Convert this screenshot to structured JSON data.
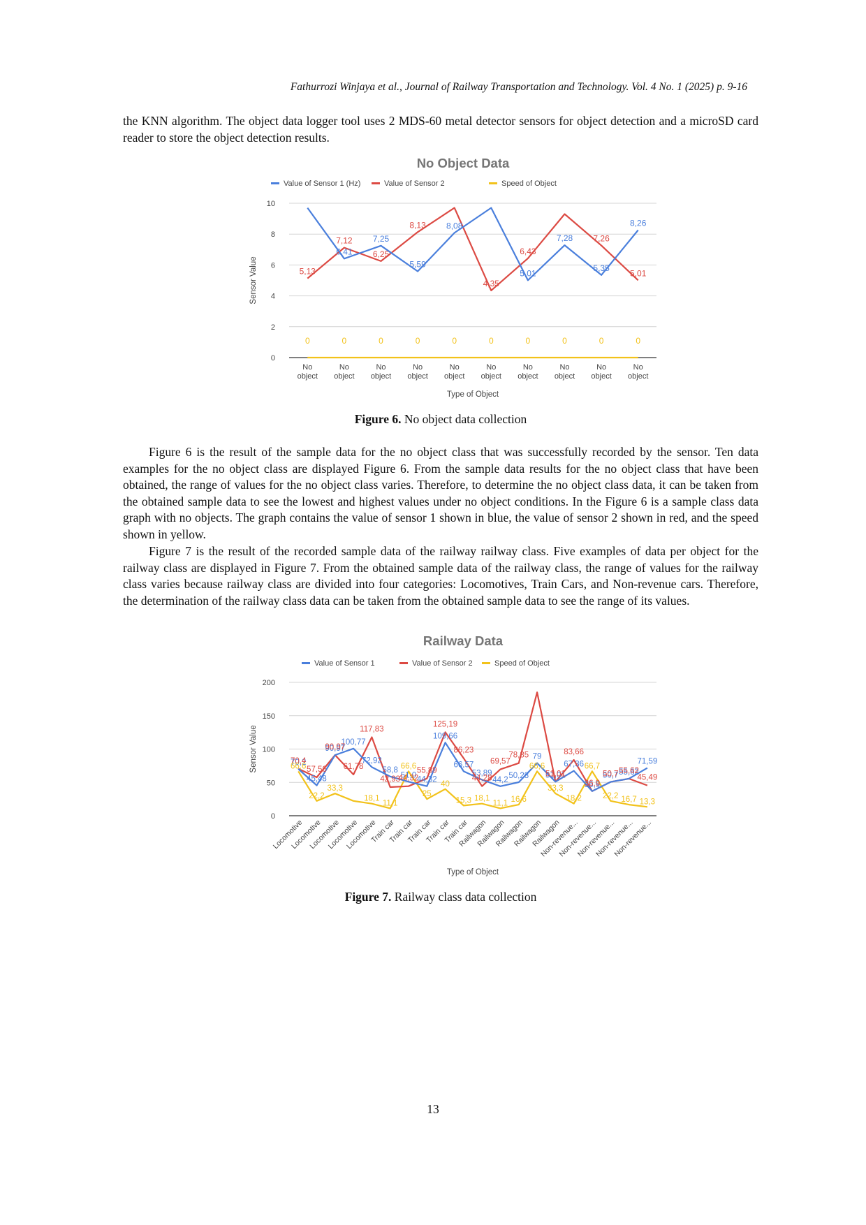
{
  "header": "Fathurrozi Winjaya et al., Journal of Railway Transportation and Technology. Vol. 4 No. 1 (2025) p. 9-16",
  "paragraphs": {
    "p1": "the KNN algorithm. The object data logger tool uses 2 MDS-60 metal detector sensors for object detection and a microSD card reader to store the object detection results.",
    "p2": "Figure 6 is the result of the sample data for the no object class that was successfully recorded by the sensor. Ten data examples for the no object class are displayed Figure 6. From the sample data results for the no object class that have been obtained, the range of values for the no object class varies. Therefore, to determine the no object class data, it can be taken from the obtained sample data to see the lowest and highest values under no object conditions. In the Figure 6 is a sample class data graph with no objects. The graph contains the value of sensor 1 shown in blue, the value of sensor 2 shown in red, and the speed shown in yellow.",
    "p3": "Figure 7 is the result of the recorded sample data of the railway railway class. Five examples of data per object for the railway class are displayed in Figure 7. From the obtained sample data of the railway class, the range of values for the railway class varies because railway class are divided into four categories: Locomotives, Train Cars, and Non-revenue cars. Therefore, the determination of the railway class data can be taken from the obtained sample data to see the range of its values."
  },
  "figure6": {
    "label": "Figure 6.",
    "caption": "No object data collection"
  },
  "figure7": {
    "label": "Figure 7.",
    "caption": "Railway class data collection"
  },
  "page_number": "13",
  "chart_data": [
    {
      "type": "line",
      "title": "No Object Data",
      "xlabel": "Type of Object",
      "ylabel": "Sensor Value",
      "ylim": [
        0,
        10
      ],
      "yticks": [
        0,
        2,
        4,
        6,
        8,
        10
      ],
      "grid": true,
      "legend_position": "top",
      "categories": [
        "No object",
        "No object",
        "No object",
        "No object",
        "No object",
        "No object",
        "No object",
        "No object",
        "No object",
        "No object"
      ],
      "series": [
        {
          "name": "Value of Sensor 1 (Hz)",
          "color": "#4a7fdc",
          "values": [
            9.7,
            6.41,
            7.25,
            5.59,
            8.08,
            9.7,
            5.01,
            7.28,
            5.35,
            8.26
          ],
          "labels": [
            "",
            "6,41",
            "7,25",
            "5,59",
            "8,08",
            "",
            "5,01",
            "7,28",
            "5,35",
            "8,26"
          ]
        },
        {
          "name": "Value of Sensor 2",
          "color": "#dc4a43",
          "values": [
            5.13,
            7.12,
            6.25,
            8.13,
            9.7,
            4.35,
            6.43,
            9.3,
            7.26,
            5.01
          ],
          "labels": [
            "5,13",
            "7,12",
            "6,25",
            "8,13",
            "",
            "4,35",
            "6,43",
            "",
            "7,26",
            "5,01"
          ]
        },
        {
          "name": "Speed of Object",
          "color": "#f2c21b",
          "values": [
            0,
            0,
            0,
            0,
            0,
            0,
            0,
            0,
            0,
            0
          ],
          "labels": [
            "0",
            "0",
            "0",
            "0",
            "0",
            "0",
            "0",
            "0",
            "0",
            "0"
          ]
        }
      ]
    },
    {
      "type": "line",
      "title": "Railway Data",
      "xlabel": "Type of Object",
      "ylabel": "Sensor Value",
      "ylim": [
        0,
        200
      ],
      "yticks": [
        0,
        50,
        100,
        150,
        200
      ],
      "grid": true,
      "legend_position": "top",
      "categories": [
        "Locomotive",
        "Locomotive",
        "Locomotive",
        "Locomotive",
        "Locomotive",
        "Train car",
        "Train car",
        "Train car",
        "Train car",
        "Train car",
        "Railwagon",
        "Railwagon",
        "Railwagon",
        "Railwagon",
        "Railwagon",
        "Non-revenue...",
        "Non-revenue...",
        "Non-revenue...",
        "Non-revenue...",
        "Non-revenue..."
      ],
      "series": [
        {
          "name": "Value of Sensor 1",
          "color": "#4a7fdc",
          "values": [
            70.2,
            45.48,
            90.97,
            100.77,
            72.92,
            58.8,
            51.0,
            44.32,
            109.66,
            66.57,
            53.89,
            44.2,
            50.28,
            79,
            51.01,
            67.36,
            36.9,
            50.7,
            55.62,
            71.59
          ],
          "labels": [
            "70,2",
            "45,48",
            "90,97",
            "100,77",
            "72,92",
            "58,8",
            "51,0",
            "44,32",
            "109,66",
            "66,57",
            "53,89",
            "44,2",
            "50,28",
            "79",
            "51,01",
            "67,36",
            "36,9",
            "50,7",
            "55,62",
            "71,59"
          ]
        },
        {
          "name": "Value of Sensor 2",
          "color": "#dc4a43",
          "values": [
            70.4,
            57.56,
            90.97,
            61.78,
            117.83,
            42.93,
            44.32,
            55.89,
            125.19,
            86.23,
            44.28,
            69.57,
            78.85,
            185.0,
            51.01,
            83.66,
            36.9,
            50.7,
            55.62,
            45.49
          ],
          "labels": [
            "70,4",
            "57,56",
            "90,97",
            "61,78",
            "117,83",
            "42,93",
            "44,32",
            "55,89",
            "125,19",
            "86,23",
            "44,28",
            "69,57",
            "78,85",
            "",
            "51,01",
            "83,66",
            "36,9",
            "50,7",
            "55,62",
            "45,49"
          ]
        },
        {
          "name": "Speed of Object",
          "color": "#f2c21b",
          "values": [
            66.6,
            22.2,
            33.3,
            22.2,
            18.1,
            11.1,
            66.6,
            25,
            40,
            15.3,
            18.1,
            11.1,
            16.6,
            66.6,
            33.3,
            18.2,
            66.7,
            22.2,
            16.7,
            13.3
          ],
          "labels": [
            "66,6",
            "22,2",
            "33,3",
            "",
            "18,1",
            "11,1",
            "66,6",
            "25",
            "40",
            "15,3",
            "18,1",
            "11,1",
            "16,6",
            "66,6",
            "33,3",
            "18,2",
            "66,7",
            "22,2",
            "16,7",
            "13,3"
          ]
        }
      ]
    }
  ]
}
